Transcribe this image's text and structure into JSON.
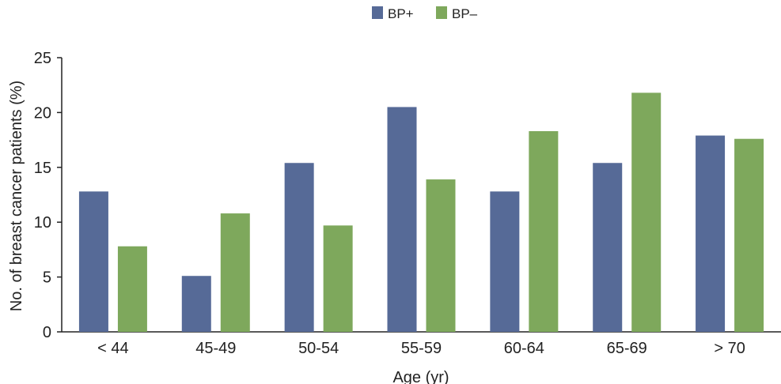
{
  "chart_data": {
    "type": "bar",
    "title": "",
    "xlabel": "Age (yr)",
    "ylabel": "No. of breast cancer patients (%)",
    "ylim": [
      0,
      25
    ],
    "yticks": [
      "0",
      "5",
      "10",
      "15",
      "20",
      "25"
    ],
    "categories": [
      "< 44",
      "45-49",
      "50-54",
      "55-59",
      "60-64",
      "65-69",
      "> 70"
    ],
    "series": [
      {
        "name": "BP+",
        "color": "#566a97",
        "values": [
          12.8,
          5.1,
          15.4,
          20.5,
          12.8,
          15.4,
          17.9
        ]
      },
      {
        "name": "BP–",
        "color": "#7ea85c",
        "values": [
          7.8,
          10.8,
          9.7,
          13.9,
          18.3,
          21.8,
          17.6
        ]
      }
    ],
    "legend_position": "top-center",
    "grid": false
  }
}
